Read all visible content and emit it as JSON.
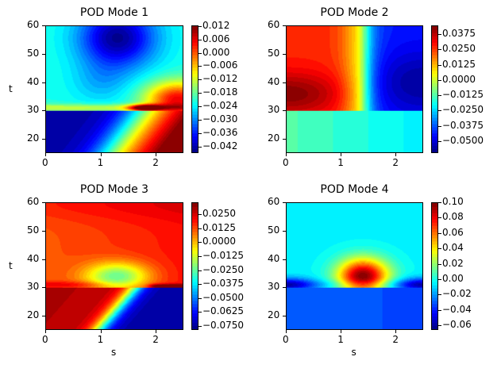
{
  "chart_data": [
    {
      "type": "heatmap",
      "title": "POD Mode 1",
      "xlabel": "",
      "ylabel": "t",
      "xlim": [
        0,
        2.5
      ],
      "ylim": [
        15,
        60
      ],
      "xticks": [
        "0",
        "1",
        "2"
      ],
      "yticks": [
        "20",
        "30",
        "40",
        "50",
        "60"
      ],
      "colorbar": {
        "range": [
          -0.045,
          0.0123
        ],
        "ticks": [
          "0.012",
          "0.006",
          "0.000",
          "−0.006",
          "−0.012",
          "−0.018",
          "−0.024",
          "−0.030",
          "−0.036",
          "−0.042"
        ],
        "tick_values": [
          0.012,
          0.006,
          0,
          -0.006,
          -0.012,
          -0.018,
          -0.024,
          -0.03,
          -0.036,
          -0.042
        ]
      },
      "colormap": "jet"
    },
    {
      "type": "heatmap",
      "title": "POD Mode 2",
      "xlabel": "",
      "ylabel": "",
      "xlim": [
        0,
        2.5
      ],
      "ylim": [
        15,
        60
      ],
      "xticks": [
        "0",
        "1",
        "2"
      ],
      "yticks": [
        "20",
        "30",
        "40",
        "50",
        "60"
      ],
      "colorbar": {
        "range": [
          -0.0597,
          0.0446
        ],
        "ticks": [
          "0.0375",
          "0.0250",
          "0.0125",
          "0.0000",
          "−0.0125",
          "−0.0250",
          "−0.0375",
          "−0.0500"
        ],
        "tick_values": [
          0.0375,
          0.025,
          0.0125,
          0,
          -0.0125,
          -0.025,
          -0.0375,
          -0.05
        ]
      },
      "colormap": "jet"
    },
    {
      "type": "heatmap",
      "title": "POD Mode 3",
      "xlabel": "s",
      "ylabel": "t",
      "xlim": [
        0,
        2.5
      ],
      "ylim": [
        15,
        60
      ],
      "xticks": [
        "0",
        "1",
        "2"
      ],
      "yticks": [
        "20",
        "30",
        "40",
        "50",
        "60"
      ],
      "colorbar": {
        "range": [
          -0.0786,
          0.0357
        ],
        "ticks": [
          "0.0250",
          "0.0125",
          "0.0000",
          "−0.0125",
          "−0.0250",
          "−0.0375",
          "−0.0500",
          "−0.0625",
          "−0.0750"
        ],
        "tick_values": [
          0.025,
          0.0125,
          0,
          -0.0125,
          -0.025,
          -0.0375,
          -0.05,
          -0.0625,
          -0.075
        ]
      },
      "colormap": "jet"
    },
    {
      "type": "heatmap",
      "title": "POD Mode 4",
      "xlabel": "s",
      "ylabel": "",
      "xlim": [
        0,
        2.5
      ],
      "ylim": [
        15,
        60
      ],
      "xticks": [
        "0",
        "1",
        "2"
      ],
      "yticks": [
        "20",
        "30",
        "40",
        "50",
        "60"
      ],
      "colorbar": {
        "range": [
          -0.066,
          0.1
        ],
        "ticks": [
          "0.10",
          "0.08",
          "0.06",
          "0.04",
          "0.02",
          "0.00",
          "−0.02",
          "−0.04",
          "−0.06"
        ],
        "tick_values": [
          0.1,
          0.08,
          0.06,
          0.04,
          0.02,
          0,
          -0.02,
          -0.04,
          -0.06
        ]
      },
      "colormap": "jet"
    }
  ]
}
